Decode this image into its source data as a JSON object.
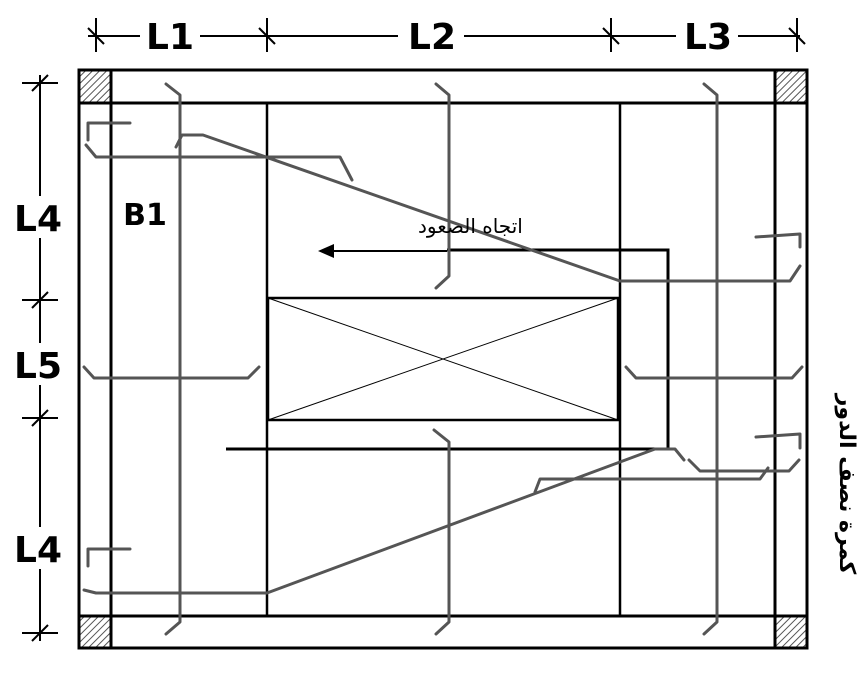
{
  "dimensions": {
    "horizontal": [
      "L1",
      "L2",
      "L3"
    ],
    "vertical": [
      "L4",
      "L5",
      "L4"
    ]
  },
  "beam_label": "B1",
  "stair_direction_label": "اتجاه الصعود",
  "side_label": "كمرة نصف الدور",
  "colors": {
    "lines": "#000000",
    "rebar": "#555555",
    "column_hatch": "#777777"
  }
}
